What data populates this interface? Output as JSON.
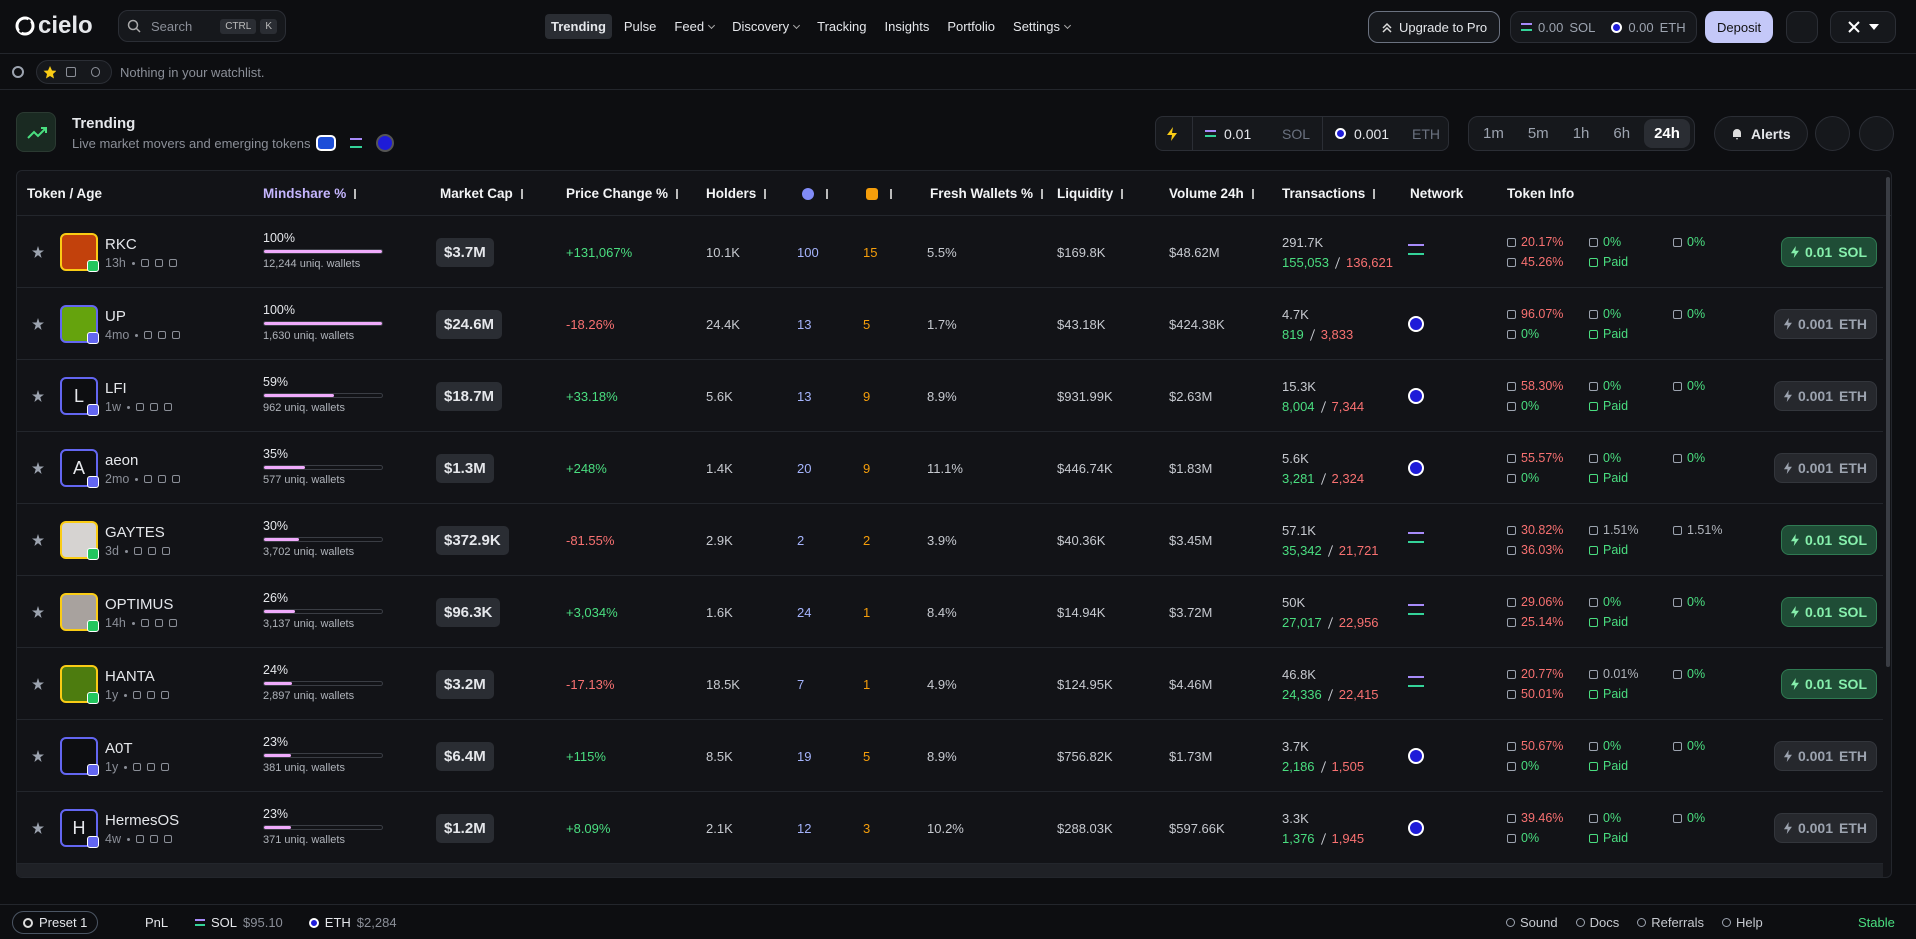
{
  "nav": {
    "logo": "cielo",
    "search": "Search",
    "keys": [
      "CTRL",
      "K"
    ],
    "links": [
      "Trending",
      "Pulse",
      "Feed",
      "Discovery",
      "Tracking",
      "Insights",
      "Portfolio",
      "Settings"
    ],
    "upgrade": "Upgrade to Pro",
    "balances": [
      {
        "amount": "0.00",
        "unit": "SOL"
      },
      {
        "amount": "0.00",
        "unit": "ETH"
      }
    ],
    "deposit": "Deposit"
  },
  "watchlist": {
    "empty": "Nothing in your watchlist."
  },
  "header": {
    "title": "Trending",
    "subtitle": "Live market movers and emerging tokens",
    "buy": [
      {
        "amount": "0.01",
        "unit": "SOL"
      },
      {
        "amount": "0.001",
        "unit": "ETH"
      }
    ],
    "timeframes": [
      "1m",
      "5m",
      "1h",
      "6h",
      "24h"
    ],
    "alerts": "Alerts"
  },
  "table": {
    "columns": [
      "Token / Age",
      "Mindshare %",
      "Market Cap",
      "Price Change %",
      "Holders",
      "Fresh Wallets %",
      "Liquidity",
      "Volume 24h",
      "Transactions",
      "Network",
      "Token Info"
    ],
    "rows": [
      {
        "name": "RKC",
        "age": "13h",
        "mindshare": "100%",
        "wallets": "12,244 uniq. wallets",
        "mcap": "$3.7M",
        "change": "+131,067%",
        "holders": "10.1K",
        "verified": "100",
        "col7": "15",
        "fresh": "5.5%",
        "liquidity": "$169.8K",
        "volume": "$48.62M",
        "tx": "291.7K",
        "buys": "155,053",
        "sells": "136,621",
        "network": "SOL",
        "top10": "20.17%",
        "dev": "0%",
        "snipers": "0%",
        "bundled": "45.26%",
        "paid": "Paid",
        "btn_amount": "0.01",
        "btn_unit": "SOL"
      },
      {
        "name": "UP",
        "age": "4mo",
        "mindshare": "100%",
        "wallets": "1,630 uniq. wallets",
        "mcap": "$24.6M",
        "change": "-18.26%",
        "holders": "24.4K",
        "verified": "13",
        "col7": "5",
        "fresh": "1.7%",
        "liquidity": "$43.18K",
        "volume": "$424.38K",
        "tx": "4.7K",
        "buys": "819",
        "sells": "3,833",
        "network": "ETH",
        "top10": "96.07%",
        "dev": "0%",
        "snipers": "0%",
        "bundled": "0%",
        "paid": "Paid",
        "btn_amount": "0.001",
        "btn_unit": "ETH"
      },
      {
        "name": "LFI",
        "avatar": "L",
        "age": "1w",
        "mindshare": "59%",
        "wallets": "962 uniq. wallets",
        "mcap": "$18.7M",
        "change": "+33.18%",
        "holders": "5.6K",
        "verified": "13",
        "col7": "9",
        "fresh": "8.9%",
        "liquidity": "$931.99K",
        "volume": "$2.63M",
        "tx": "15.3K",
        "buys": "8,004",
        "sells": "7,344",
        "network": "ETH",
        "top10": "58.30%",
        "dev": "0%",
        "snipers": "0%",
        "bundled": "0%",
        "paid": "Paid",
        "btn_amount": "0.001",
        "btn_unit": "ETH"
      },
      {
        "name": "aeon",
        "avatar": "A",
        "age": "2mo",
        "mindshare": "35%",
        "wallets": "577 uniq. wallets",
        "mcap": "$1.3M",
        "change": "+248%",
        "holders": "1.4K",
        "verified": "20",
        "col7": "9",
        "fresh": "11.1%",
        "liquidity": "$446.74K",
        "volume": "$1.83M",
        "tx": "5.6K",
        "buys": "3,281",
        "sells": "2,324",
        "network": "ETH",
        "top10": "55.57%",
        "dev": "0%",
        "snipers": "0%",
        "bundled": "0%",
        "paid": "Paid",
        "btn_amount": "0.001",
        "btn_unit": "ETH"
      },
      {
        "name": "GAYTES",
        "age": "3d",
        "mindshare": "30%",
        "wallets": "3,702 uniq. wallets",
        "mcap": "$372.9K",
        "change": "-81.55%",
        "holders": "2.9K",
        "verified": "2",
        "col7": "2",
        "fresh": "3.9%",
        "liquidity": "$40.36K",
        "volume": "$3.45M",
        "tx": "57.1K",
        "buys": "35,342",
        "sells": "21,721",
        "network": "SOL",
        "top10": "30.82%",
        "dev": "1.51%",
        "snipers": "1.51%",
        "bundled": "36.03%",
        "paid": "Paid",
        "btn_amount": "0.01",
        "btn_unit": "SOL"
      },
      {
        "name": "OPTIMUS",
        "age": "14h",
        "mindshare": "26%",
        "wallets": "3,137 uniq. wallets",
        "mcap": "$96.3K",
        "change": "+3,034%",
        "holders": "1.6K",
        "verified": "24",
        "col7": "1",
        "fresh": "8.4%",
        "liquidity": "$14.94K",
        "volume": "$3.72M",
        "tx": "50K",
        "buys": "27,017",
        "sells": "22,956",
        "network": "SOL",
        "top10": "29.06%",
        "dev": "0%",
        "snipers": "0%",
        "bundled": "25.14%",
        "paid": "Paid",
        "btn_amount": "0.01",
        "btn_unit": "SOL"
      },
      {
        "name": "HANTA",
        "age": "1y",
        "mindshare": "24%",
        "wallets": "2,897 uniq. wallets",
        "mcap": "$3.2M",
        "change": "-17.13%",
        "holders": "18.5K",
        "verified": "7",
        "col7": "1",
        "fresh": "4.9%",
        "liquidity": "$124.95K",
        "volume": "$4.46M",
        "tx": "46.8K",
        "buys": "24,336",
        "sells": "22,415",
        "network": "SOL",
        "top10": "20.77%",
        "dev": "0.01%",
        "snipers": "0%",
        "bundled": "50.01%",
        "paid": "Paid",
        "btn_amount": "0.01",
        "btn_unit": "SOL"
      },
      {
        "name": "A0T",
        "age": "1y",
        "mindshare": "23%",
        "wallets": "381 uniq. wallets",
        "mcap": "$6.4M",
        "change": "+115%",
        "holders": "8.5K",
        "verified": "19",
        "col7": "5",
        "fresh": "8.9%",
        "liquidity": "$756.82K",
        "volume": "$1.73M",
        "tx": "3.7K",
        "buys": "2,186",
        "sells": "1,505",
        "network": "ETH",
        "top10": "50.67%",
        "dev": "0%",
        "snipers": "0%",
        "bundled": "0%",
        "paid": "Paid",
        "btn_amount": "0.001",
        "btn_unit": "ETH"
      },
      {
        "name": "HermesOS",
        "avatar": "H",
        "age": "4w",
        "mindshare": "23%",
        "wallets": "371 uniq. wallets",
        "mcap": "$1.2M",
        "change": "+8.09%",
        "holders": "2.1K",
        "verified": "12",
        "col7": "3",
        "fresh": "10.2%",
        "liquidity": "$288.03K",
        "volume": "$597.66K",
        "tx": "3.3K",
        "buys": "1,376",
        "sells": "1,945",
        "network": "ETH",
        "top10": "39.46%",
        "dev": "0%",
        "snipers": "0%",
        "bundled": "0%",
        "paid": "Paid",
        "btn_amount": "0.001",
        "btn_unit": "ETH"
      }
    ]
  },
  "footer": {
    "preset": "Preset 1",
    "pnl": "PnL",
    "prices": [
      {
        "unit": "SOL",
        "price": "$95.10"
      },
      {
        "unit": "ETH",
        "price": "$2,284"
      }
    ],
    "links": [
      "Sound",
      "Docs",
      "Referrals",
      "Help"
    ],
    "status": "Stable"
  }
}
